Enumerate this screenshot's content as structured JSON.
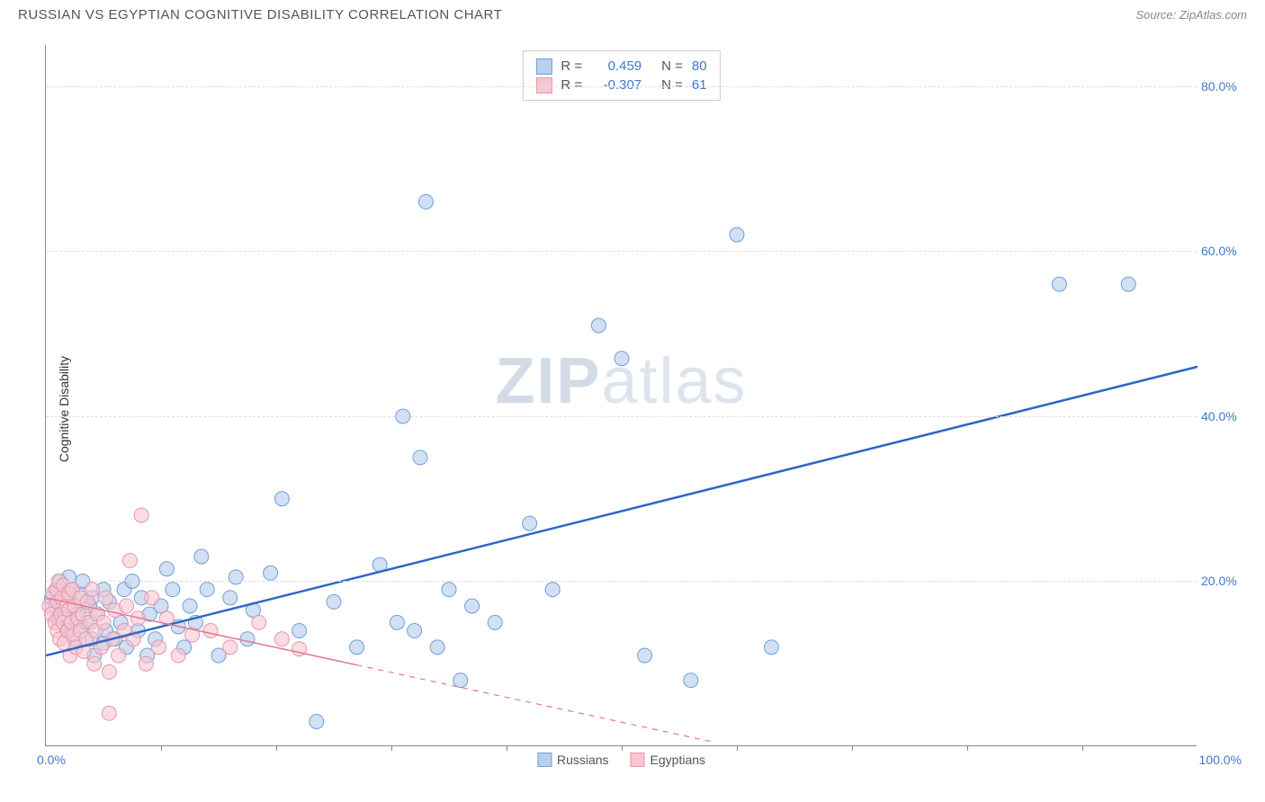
{
  "header": {
    "title": "RUSSIAN VS EGYPTIAN COGNITIVE DISABILITY CORRELATION CHART",
    "source": "Source: ZipAtlas.com"
  },
  "watermark": {
    "part1": "ZIP",
    "part2": "atlas"
  },
  "chart": {
    "type": "scatter",
    "xlim": [
      0,
      100
    ],
    "ylim": [
      0,
      85
    ],
    "y_ticks": [
      20,
      40,
      60,
      80
    ],
    "y_tick_labels": [
      "20.0%",
      "40.0%",
      "60.0%",
      "80.0%"
    ],
    "x_min_label": "0.0%",
    "x_max_label": "100.0%",
    "x_ticks": [
      10,
      20,
      30,
      40,
      50,
      60,
      70,
      80,
      90
    ],
    "y_axis_label": "Cognitive Disability",
    "background_color": "#ffffff",
    "grid_color": "#dddddd",
    "axis_color": "#888888",
    "tick_label_color": "#4178c8",
    "tick_label_fontsize": 14,
    "marker_radius": 8,
    "marker_stroke_width": 1,
    "series": [
      {
        "name": "Russians",
        "fill": "#b9d0ed",
        "stroke": "#6f9fd8",
        "fill_opacity": 0.65,
        "R": "0.459",
        "N": "80",
        "trend": {
          "x1": 0,
          "y1": 11,
          "x2": 100,
          "y2": 46,
          "solid_until_x": 100,
          "stroke": "#2b67c6",
          "width": 2.5
        },
        "points": [
          [
            0.5,
            18
          ],
          [
            0.8,
            17
          ],
          [
            1,
            19
          ],
          [
            1,
            15.5
          ],
          [
            1.2,
            20
          ],
          [
            1.3,
            17
          ],
          [
            1.5,
            16
          ],
          [
            1.5,
            19.5
          ],
          [
            1.8,
            14
          ],
          [
            2,
            18
          ],
          [
            2,
            20.5
          ],
          [
            2.2,
            15
          ],
          [
            2.3,
            19
          ],
          [
            2.5,
            17
          ],
          [
            2.5,
            13
          ],
          [
            2.8,
            16
          ],
          [
            3,
            14.5
          ],
          [
            3,
            18.5
          ],
          [
            3.2,
            20
          ],
          [
            3.5,
            15
          ],
          [
            3.8,
            17
          ],
          [
            4,
            18
          ],
          [
            4,
            13
          ],
          [
            4.2,
            11
          ],
          [
            4.5,
            16
          ],
          [
            5,
            12.5
          ],
          [
            5,
            19
          ],
          [
            5.2,
            14
          ],
          [
            5.5,
            17.5
          ],
          [
            6,
            13
          ],
          [
            6.5,
            15
          ],
          [
            6.8,
            19
          ],
          [
            7,
            12
          ],
          [
            7.5,
            20
          ],
          [
            8,
            14
          ],
          [
            8.3,
            18
          ],
          [
            8.8,
            11
          ],
          [
            9,
            16
          ],
          [
            9.5,
            13
          ],
          [
            10,
            17
          ],
          [
            10.5,
            21.5
          ],
          [
            11,
            19
          ],
          [
            11.5,
            14.5
          ],
          [
            12,
            12
          ],
          [
            12.5,
            17
          ],
          [
            13,
            15
          ],
          [
            13.5,
            23
          ],
          [
            14,
            19
          ],
          [
            15,
            11
          ],
          [
            16,
            18
          ],
          [
            16.5,
            20.5
          ],
          [
            17.5,
            13
          ],
          [
            18,
            16.5
          ],
          [
            19.5,
            21
          ],
          [
            20.5,
            30
          ],
          [
            22,
            14
          ],
          [
            23.5,
            3
          ],
          [
            25,
            17.5
          ],
          [
            27,
            12
          ],
          [
            29,
            22
          ],
          [
            30.5,
            15
          ],
          [
            31,
            40
          ],
          [
            32,
            14
          ],
          [
            32.5,
            35
          ],
          [
            33,
            66
          ],
          [
            34,
            12
          ],
          [
            35,
            19
          ],
          [
            36,
            8
          ],
          [
            37,
            17
          ],
          [
            39,
            15
          ],
          [
            42,
            27
          ],
          [
            44,
            19
          ],
          [
            48,
            51
          ],
          [
            50,
            47
          ],
          [
            52,
            11
          ],
          [
            56,
            8
          ],
          [
            60,
            62
          ],
          [
            63,
            12
          ],
          [
            88,
            56
          ],
          [
            94,
            56
          ]
        ]
      },
      {
        "name": "Egyptians",
        "fill": "#f7c6d0",
        "stroke": "#e895aa",
        "fill_opacity": 0.6,
        "R": "-0.307",
        "N": "61",
        "trend": {
          "x1": 0,
          "y1": 18,
          "x2": 58,
          "y2": 0.5,
          "solid_until_x": 27,
          "stroke": "#e37891",
          "width": 1.5
        },
        "points": [
          [
            0.3,
            17
          ],
          [
            0.5,
            16
          ],
          [
            0.6,
            18.5
          ],
          [
            0.8,
            15
          ],
          [
            0.9,
            19
          ],
          [
            1,
            14
          ],
          [
            1,
            17.5
          ],
          [
            1.1,
            20
          ],
          [
            1.2,
            13
          ],
          [
            1.3,
            16
          ],
          [
            1.4,
            18
          ],
          [
            1.5,
            15
          ],
          [
            1.5,
            19.5
          ],
          [
            1.6,
            12.5
          ],
          [
            1.8,
            17
          ],
          [
            1.9,
            14
          ],
          [
            2,
            16.5
          ],
          [
            2,
            18.5
          ],
          [
            2.1,
            11
          ],
          [
            2.2,
            15
          ],
          [
            2.3,
            19
          ],
          [
            2.4,
            13.5
          ],
          [
            2.5,
            17
          ],
          [
            2.6,
            12
          ],
          [
            2.8,
            15.5
          ],
          [
            3,
            14
          ],
          [
            3,
            18
          ],
          [
            3.2,
            16
          ],
          [
            3.3,
            11.5
          ],
          [
            3.5,
            13
          ],
          [
            3.6,
            17.5
          ],
          [
            3.8,
            15
          ],
          [
            4,
            19
          ],
          [
            4.2,
            10
          ],
          [
            4.3,
            14
          ],
          [
            4.5,
            16
          ],
          [
            4.8,
            12
          ],
          [
            5,
            15
          ],
          [
            5.2,
            18
          ],
          [
            5.5,
            9
          ],
          [
            5.5,
            4
          ],
          [
            5.8,
            13
          ],
          [
            6,
            16.5
          ],
          [
            6.3,
            11
          ],
          [
            6.8,
            14
          ],
          [
            7,
            17
          ],
          [
            7.3,
            22.5
          ],
          [
            7.6,
            13
          ],
          [
            8,
            15.5
          ],
          [
            8.3,
            28
          ],
          [
            8.7,
            10
          ],
          [
            9.2,
            18
          ],
          [
            9.8,
            12
          ],
          [
            10.5,
            15.5
          ],
          [
            11.5,
            11
          ],
          [
            12.7,
            13.5
          ],
          [
            14.3,
            14
          ],
          [
            16,
            12
          ],
          [
            18.5,
            15
          ],
          [
            20.5,
            13
          ],
          [
            22,
            11.8
          ]
        ]
      }
    ],
    "legend_bottom": [
      {
        "label": "Russians",
        "fill": "#b9d0ed",
        "stroke": "#6f9fd8"
      },
      {
        "label": "Egyptians",
        "fill": "#f7c6d0",
        "stroke": "#e895aa"
      }
    ]
  }
}
